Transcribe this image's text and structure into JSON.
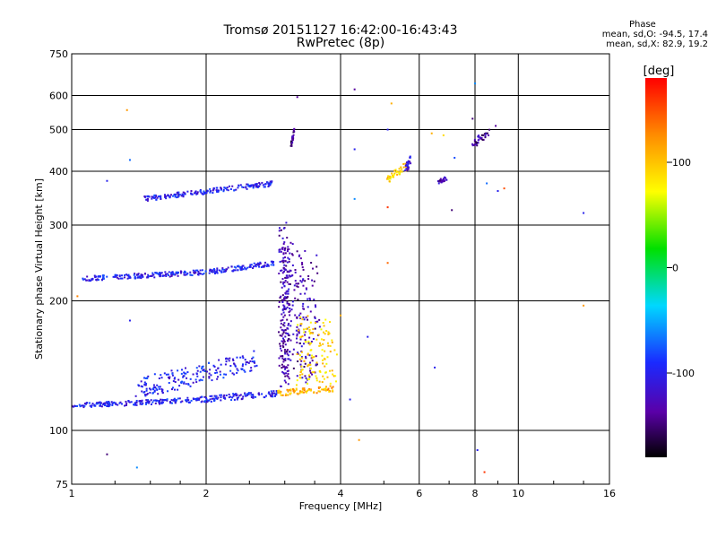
{
  "chart_data": {
    "type": "scatter",
    "title": "Tromsø 20151127 16:42:00-16:43:43",
    "subtitle": "RwPretec (8p)",
    "xlabel": "Frequency [MHz]",
    "ylabel": "Stationary phase Virtual Height [km]",
    "xscale": "log",
    "yscale": "log",
    "xlim": [
      1,
      16
    ],
    "ylim": [
      75,
      750
    ],
    "xticks": [
      1,
      2,
      4,
      6,
      8,
      10,
      16
    ],
    "xtick_labels": [
      "1",
      "2",
      "4",
      "6",
      "8",
      "10",
      "16"
    ],
    "yticks": [
      75,
      100,
      200,
      300,
      400,
      500,
      600,
      750
    ],
    "ytick_labels": [
      "75",
      "100",
      "200",
      "300",
      "400",
      "500",
      "600",
      "750"
    ],
    "grid": true,
    "colorbar": {
      "label": "[deg]",
      "range": [
        -180,
        180
      ],
      "ticks": [
        100,
        0,
        -100
      ],
      "tick_labels": [
        "100",
        "0",
        "-100"
      ]
    },
    "stats": {
      "header": "Phase",
      "o_line": "mean, sd,O: -94.5, 17.4",
      "x_line": "mean, sd,X:  82.9, 19.2"
    },
    "traces": [
      {
        "x_range": [
          1.0,
          1.95
        ],
        "y_start": 114,
        "y_end": 118,
        "phase": -100,
        "spread": 0.012
      },
      {
        "x_range": [
          1.95,
          2.9
        ],
        "y_start": 118,
        "y_end": 122,
        "phase": -100,
        "spread": 0.015
      },
      {
        "x_range": [
          1.05,
          2.0
        ],
        "y_start": 225,
        "y_end": 233,
        "phase": -100,
        "spread": 0.012
      },
      {
        "x_range": [
          2.0,
          2.85
        ],
        "y_start": 233,
        "y_end": 245,
        "phase": -100,
        "spread": 0.012
      },
      {
        "x_range": [
          1.45,
          2.85
        ],
        "y_start": 345,
        "y_end": 375,
        "phase": -100,
        "spread": 0.012
      },
      {
        "x_range": [
          1.4,
          2.6
        ],
        "y_start": 125,
        "y_end": 145,
        "phase": -100,
        "spread": 0.05
      },
      {
        "x_range": [
          2.95,
          3.05
        ],
        "y_start": 130,
        "y_end": 290,
        "phase": -130,
        "spread": 0.06
      },
      {
        "x_range": [
          3.0,
          3.55
        ],
        "y_start": 135,
        "y_end": 260,
        "phase": -130,
        "spread": 0.05
      },
      {
        "x_range": [
          2.9,
          3.85
        ],
        "y_start": 122,
        "y_end": 125,
        "phase": 110,
        "spread": 0.015
      },
      {
        "x_range": [
          3.2,
          3.9
        ],
        "y_start": 128,
        "y_end": 180,
        "phase": 90,
        "spread": 0.03
      },
      {
        "x_range": [
          5.1,
          5.6
        ],
        "y_start": 385,
        "y_end": 410,
        "phase": 90,
        "spread": 0.02
      },
      {
        "x_range": [
          5.6,
          5.75
        ],
        "y_start": 405,
        "y_end": 430,
        "phase": -110,
        "spread": 0.02
      },
      {
        "x_range": [
          6.6,
          6.9
        ],
        "y_start": 378,
        "y_end": 385,
        "phase": -130,
        "spread": 0.01
      },
      {
        "x_range": [
          7.9,
          8.6
        ],
        "y_start": 460,
        "y_end": 495,
        "phase": -140,
        "spread": 0.02
      },
      {
        "x_range": [
          3.1,
          3.15
        ],
        "y_start": 460,
        "y_end": 500,
        "phase": -140,
        "spread": 0.01
      }
    ],
    "scatter_points": [
      {
        "x": 1.33,
        "y": 555,
        "phase": 120
      },
      {
        "x": 1.35,
        "y": 425,
        "phase": -70
      },
      {
        "x": 1.2,
        "y": 380,
        "phase": -100
      },
      {
        "x": 1.35,
        "y": 180,
        "phase": -100
      },
      {
        "x": 1.03,
        "y": 205,
        "phase": 130
      },
      {
        "x": 1.2,
        "y": 88,
        "phase": -150
      },
      {
        "x": 1.4,
        "y": 82,
        "phase": -60
      },
      {
        "x": 3.2,
        "y": 595,
        "phase": -140
      },
      {
        "x": 4.3,
        "y": 620,
        "phase": -140
      },
      {
        "x": 4.3,
        "y": 450,
        "phase": -100
      },
      {
        "x": 4.3,
        "y": 345,
        "phase": -60
      },
      {
        "x": 4.4,
        "y": 95,
        "phase": 120
      },
      {
        "x": 4.2,
        "y": 118,
        "phase": -100
      },
      {
        "x": 5.1,
        "y": 500,
        "phase": -100
      },
      {
        "x": 5.2,
        "y": 575,
        "phase": 110
      },
      {
        "x": 5.1,
        "y": 330,
        "phase": 160
      },
      {
        "x": 5.1,
        "y": 245,
        "phase": 140
      },
      {
        "x": 6.4,
        "y": 490,
        "phase": 110
      },
      {
        "x": 6.8,
        "y": 485,
        "phase": 90
      },
      {
        "x": 7.1,
        "y": 325,
        "phase": -150
      },
      {
        "x": 7.2,
        "y": 430,
        "phase": -80
      },
      {
        "x": 6.5,
        "y": 140,
        "phase": -100
      },
      {
        "x": 8.0,
        "y": 640,
        "phase": -60
      },
      {
        "x": 7.9,
        "y": 530,
        "phase": -150
      },
      {
        "x": 8.1,
        "y": 90,
        "phase": -100
      },
      {
        "x": 8.4,
        "y": 80,
        "phase": 160
      },
      {
        "x": 8.5,
        "y": 375,
        "phase": -70
      },
      {
        "x": 9.0,
        "y": 360,
        "phase": -100
      },
      {
        "x": 9.3,
        "y": 365,
        "phase": 150
      },
      {
        "x": 8.9,
        "y": 510,
        "phase": -140
      },
      {
        "x": 14.0,
        "y": 320,
        "phase": -100
      },
      {
        "x": 14.0,
        "y": 195,
        "phase": 120
      },
      {
        "x": 4.6,
        "y": 165,
        "phase": -100
      },
      {
        "x": 4.0,
        "y": 185,
        "phase": 110
      }
    ]
  }
}
